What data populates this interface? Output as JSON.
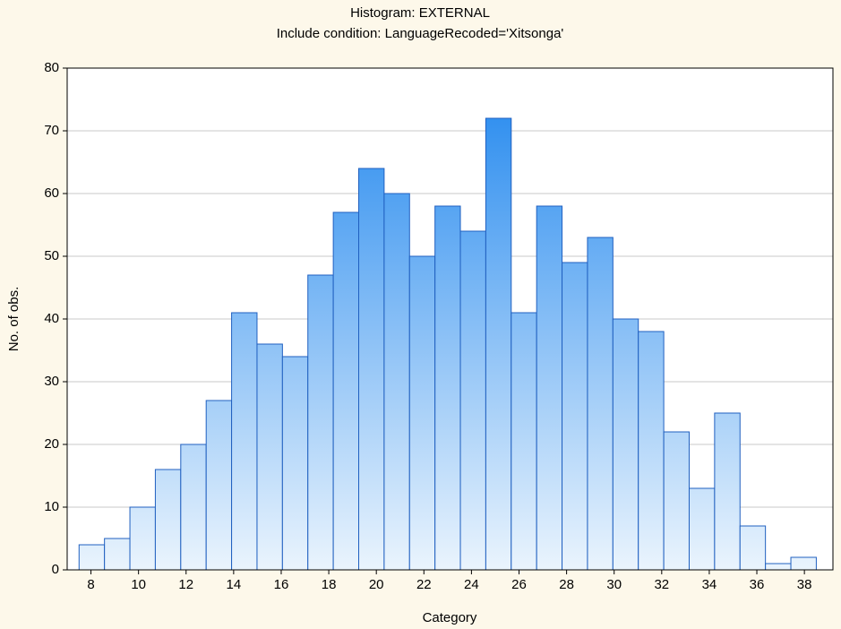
{
  "chart_data": {
    "type": "histogram",
    "title": "Histogram: EXTERNAL",
    "subtitle": "Include condition: LanguageRecoded='Xitsonga'",
    "x_label": "Category",
    "y_label": "No. of obs.",
    "bins": [
      7.5,
      8.569,
      9.638,
      10.707,
      11.776,
      12.845,
      13.914,
      14.983,
      16.052,
      17.121,
      18.19,
      19.259,
      20.328,
      21.397,
      22.466,
      23.534,
      24.603,
      25.672,
      26.741,
      27.81,
      28.879,
      29.948,
      31.017,
      32.086,
      33.155,
      34.224,
      35.293,
      36.362,
      37.431,
      38.5
    ],
    "values": [
      4,
      5,
      10,
      16,
      20,
      27,
      41,
      36,
      34,
      47,
      57,
      64,
      60,
      50,
      58,
      54,
      72,
      41,
      58,
      49,
      53,
      40,
      38,
      22,
      13,
      25,
      7,
      1,
      2
    ],
    "color": "#1f86ee",
    "edge_color": "#2060c0",
    "xlim": [
      7,
      39.2
    ],
    "xticks": [
      8,
      10,
      12,
      14,
      16,
      18,
      20,
      22,
      24,
      26,
      28,
      30,
      32,
      34,
      36,
      38
    ],
    "ylim": [
      0,
      80
    ],
    "yticks": [
      0,
      10,
      20,
      30,
      40,
      50,
      60,
      70,
      80
    ],
    "grid": true
  }
}
